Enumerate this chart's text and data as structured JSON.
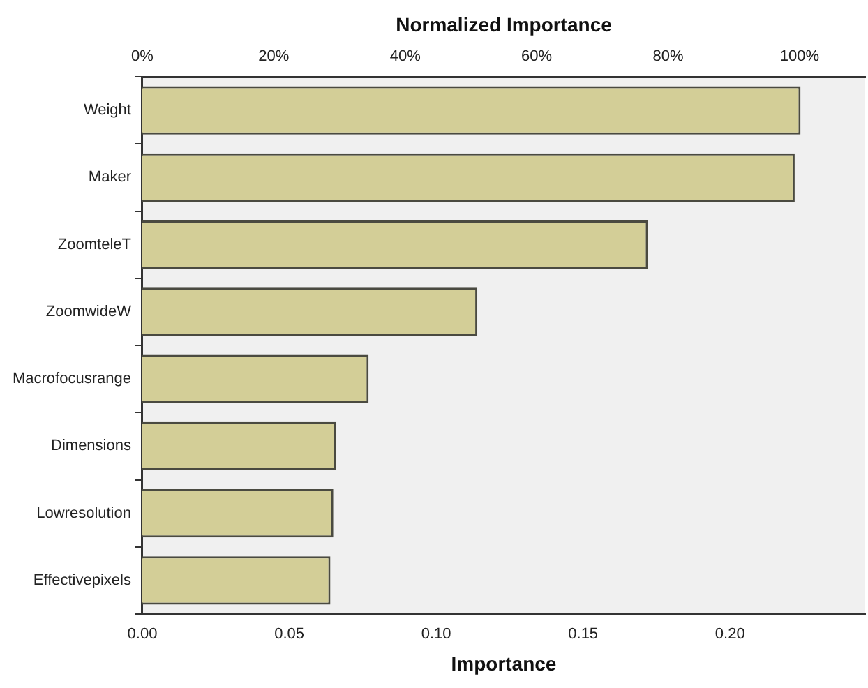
{
  "chart_data": {
    "type": "bar",
    "orientation": "horizontal",
    "categories": [
      "Weight",
      "Maker",
      "ZoomteleT",
      "ZoomwideW",
      "Macrofocusrange",
      "Dimensions",
      "Lowresolution",
      "Effectivepixels"
    ],
    "values": [
      0.224,
      0.222,
      0.172,
      0.114,
      0.077,
      0.066,
      0.065,
      0.064
    ],
    "color": "#d3ce97",
    "xlabel": "Importance",
    "xlim": [
      0,
      0.246
    ],
    "xticks": [
      {
        "value": 0,
        "label": "0.00"
      },
      {
        "value": 0.05,
        "label": "0.05"
      },
      {
        "value": 0.1,
        "label": "0.10"
      },
      {
        "value": 0.15,
        "label": "0.15"
      },
      {
        "value": 0.2,
        "label": "0.20"
      }
    ],
    "x2label": "Normalized Importance",
    "x2lim": [
      0,
      110
    ],
    "x2ticks": [
      {
        "value": 0,
        "label": "0%"
      },
      {
        "value": 20,
        "label": "20%"
      },
      {
        "value": 40,
        "label": "40%"
      },
      {
        "value": 60,
        "label": "60%"
      },
      {
        "value": 80,
        "label": "80%"
      },
      {
        "value": 100,
        "label": "100%"
      }
    ],
    "grid": false,
    "legend": false
  }
}
